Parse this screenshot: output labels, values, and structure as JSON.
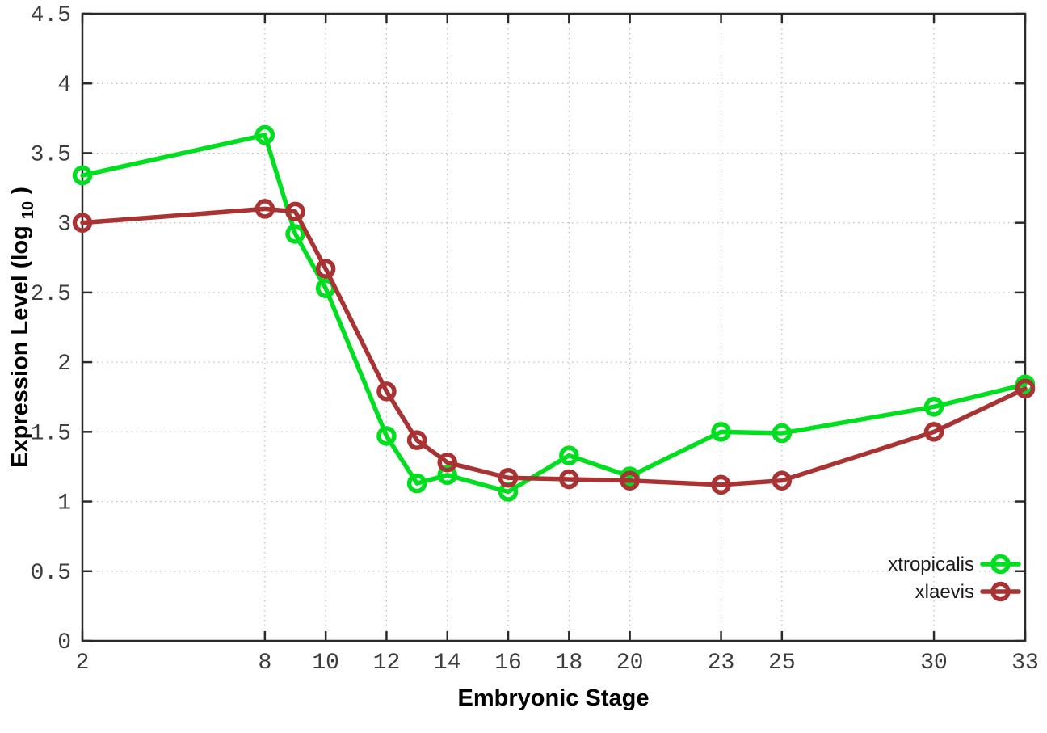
{
  "chart_data": {
    "type": "line",
    "title": "",
    "xlabel": "Embryonic Stage",
    "ylabel": "Expression Level (log10)",
    "ylabel_parts": {
      "main": "Expression Level (log",
      "sub": "10",
      "close": ")"
    },
    "xlim": [
      2,
      33
    ],
    "ylim": [
      0,
      4.5
    ],
    "grid": true,
    "legend_position": "inside-bottom-right",
    "x": [
      2,
      8,
      9,
      10,
      12,
      13,
      14,
      16,
      18,
      20,
      23,
      25,
      30,
      33
    ],
    "xtick_values": [
      2,
      8,
      10,
      12,
      14,
      16,
      18,
      20,
      23,
      25,
      30,
      33
    ],
    "xtick_labels": [
      "2",
      "8",
      "10",
      "12",
      "14",
      "16",
      "18",
      "20",
      "23",
      "25",
      "30",
      "33"
    ],
    "ytick_values": [
      0,
      0.5,
      1,
      1.5,
      2,
      2.5,
      3,
      3.5,
      4,
      4.5
    ],
    "ytick_labels": [
      "0",
      "0.5",
      "1",
      "1.5",
      "2",
      "2.5",
      "3",
      "3.5",
      "4",
      "4.5"
    ],
    "series": [
      {
        "name": "xtropicalis",
        "color": "#00de20",
        "values": [
          3.34,
          3.63,
          2.92,
          2.53,
          1.47,
          1.13,
          1.19,
          1.07,
          1.33,
          1.18,
          1.5,
          1.49,
          1.68,
          1.84
        ]
      },
      {
        "name": "xlaevis",
        "color": "#a93232",
        "values": [
          3.0,
          3.1,
          3.08,
          2.67,
          1.79,
          1.44,
          1.28,
          1.17,
          1.16,
          1.15,
          1.12,
          1.15,
          1.5,
          1.81
        ]
      }
    ]
  },
  "style": {
    "grid_color": "#b8b8b8",
    "axis_color": "#2a2a2a",
    "background": "#ffffff"
  }
}
